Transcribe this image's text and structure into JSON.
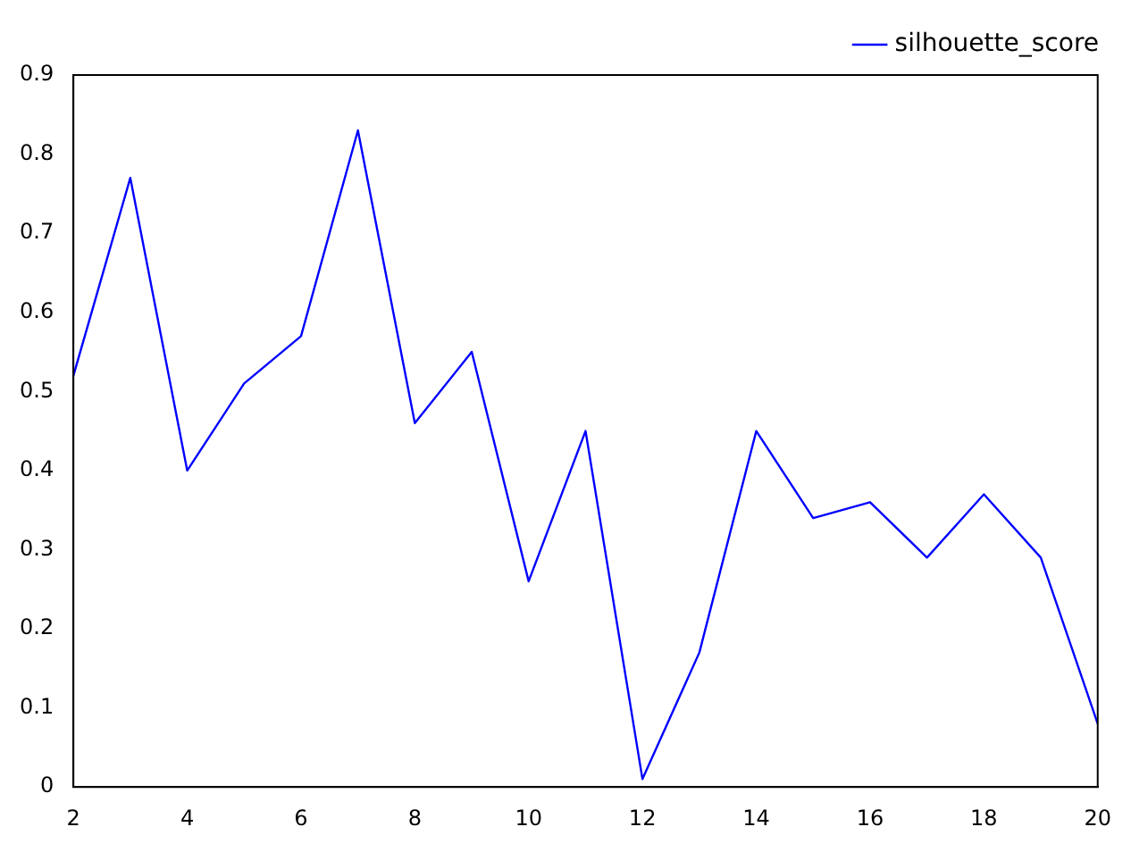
{
  "chart_data": {
    "type": "line",
    "x": [
      2,
      3,
      4,
      5,
      6,
      7,
      8,
      9,
      10,
      11,
      12,
      13,
      14,
      15,
      16,
      17,
      18,
      19,
      20
    ],
    "series": [
      {
        "name": "silhouette_score",
        "color": "#0000ff",
        "values": [
          0.52,
          0.77,
          0.4,
          0.51,
          0.57,
          0.83,
          0.46,
          0.55,
          0.26,
          0.45,
          0.01,
          0.17,
          0.45,
          0.34,
          0.36,
          0.29,
          0.37,
          0.29,
          0.08
        ]
      }
    ],
    "xlim": [
      2,
      20
    ],
    "xticks": [
      2,
      4,
      6,
      8,
      10,
      12,
      14,
      16,
      18,
      20
    ],
    "ylim": [
      0,
      0.9
    ],
    "yticks": [
      0,
      0.1,
      0.2,
      0.3,
      0.4,
      0.5,
      0.6,
      0.7,
      0.8,
      0.9
    ],
    "grid": false,
    "legend": "top right",
    "marker": "none",
    "line_style": "solid"
  }
}
